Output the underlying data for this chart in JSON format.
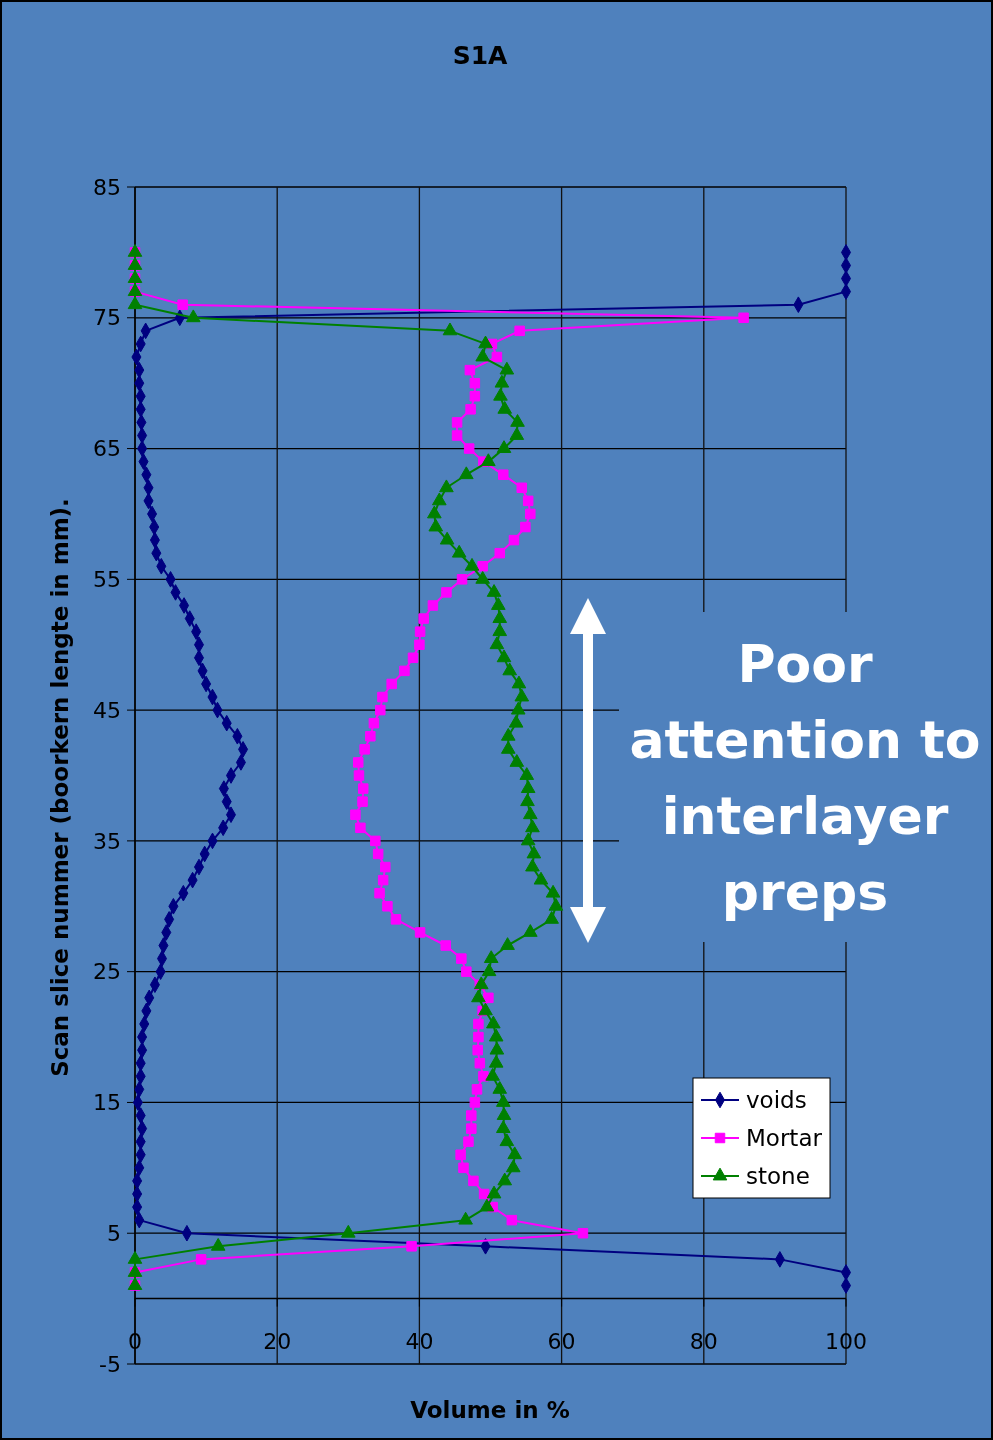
{
  "chart_data": {
    "type": "line",
    "title": "S1A",
    "xlabel": "Volume in %",
    "ylabel": "Scan slice nummer (boorkern lengte in mm).",
    "xlim": [
      0,
      100
    ],
    "xticks": [
      0,
      20,
      40,
      60,
      80,
      100
    ],
    "ylim": [
      -5,
      85
    ],
    "yticks": [
      -5,
      5,
      15,
      25,
      35,
      45,
      55,
      65,
      75,
      85
    ],
    "grid": true,
    "legend": "bottom right",
    "annotations": [
      "Poor attention to interlayer preps"
    ],
    "series": [
      {
        "name": "voids",
        "color": "#000080",
        "marker": "diamond",
        "x": [
          100,
          100,
          90.7,
          49.3,
          7.3,
          0.6,
          0.3,
          0.3,
          0.3,
          0.6,
          0.8,
          0.8,
          1.0,
          0.8,
          0.4,
          0.6,
          0.8,
          0.8,
          1.0,
          1.0,
          1.3,
          1.6,
          2.0,
          2.8,
          3.6,
          3.8,
          4.0,
          4.4,
          4.8,
          5.4,
          6.8,
          8.1,
          9.0,
          9.8,
          10.9,
          12.4,
          13.5,
          12.9,
          12.5,
          13.5,
          14.9,
          15.2,
          14.4,
          12.9,
          11.6,
          10.9,
          10.0,
          9.5,
          9.0,
          9.0,
          8.6,
          7.7,
          6.9,
          5.7,
          5.0,
          3.7,
          3.0,
          2.8,
          2.7,
          2.4,
          1.9,
          1.9,
          1.6,
          1.2,
          1.0,
          1.0,
          0.9,
          0.8,
          0.8,
          0.6,
          0.6,
          0.2,
          0.8,
          1.5,
          6.3,
          93.3,
          100,
          100,
          100,
          100
        ],
        "values": [
          1,
          2,
          3,
          4,
          5,
          6,
          7,
          8,
          9,
          10,
          11,
          12,
          13,
          14,
          15,
          16,
          17,
          18,
          19,
          20,
          21,
          22,
          23,
          24,
          25,
          26,
          27,
          28,
          29,
          30,
          31,
          32,
          33,
          34,
          35,
          36,
          37,
          38,
          39,
          40,
          41,
          42,
          43,
          44,
          45,
          46,
          47,
          48,
          49,
          50,
          51,
          52,
          53,
          54,
          55,
          56,
          57,
          58,
          59,
          60,
          61,
          62,
          63,
          64,
          65,
          66,
          67,
          68,
          69,
          70,
          71,
          72,
          73,
          74,
          75,
          76,
          77,
          78,
          79,
          80
        ]
      },
      {
        "name": "Mortar",
        "color": "#ff00ff",
        "marker": "square",
        "x": [
          0,
          0,
          9.3,
          38.9,
          63,
          53.0,
          50.3,
          49.1,
          47.6,
          46.2,
          45.8,
          46.9,
          47.3,
          47.3,
          47.8,
          48.1,
          49.0,
          48.5,
          48.2,
          48.3,
          48.3,
          48.9,
          49.7,
          48.5,
          46.6,
          45.9,
          43.7,
          40.1,
          36.7,
          35.5,
          34.4,
          34.9,
          35.2,
          34.2,
          33.8,
          31.7,
          31.0,
          32.0,
          32.1,
          31.5,
          31.4,
          32.3,
          33.1,
          33.6,
          34.5,
          34.8,
          36.1,
          37.9,
          39.1,
          40.0,
          40.1,
          40.6,
          41.9,
          43.8,
          46.0,
          48.9,
          51.3,
          53.3,
          54.9,
          55.6,
          55.3,
          54.4,
          51.8,
          49.0,
          47.0,
          45.3,
          45.3,
          47.2,
          47.8,
          47.8,
          47.1,
          50.9,
          50.2,
          54.1,
          85.6,
          6.7,
          0,
          0,
          0,
          0
        ],
        "values": [
          1,
          2,
          3,
          4,
          5,
          6,
          7,
          8,
          9,
          10,
          11,
          12,
          13,
          14,
          15,
          16,
          17,
          18,
          19,
          20,
          21,
          22,
          23,
          24,
          25,
          26,
          27,
          28,
          29,
          30,
          31,
          32,
          33,
          34,
          35,
          36,
          37,
          38,
          39,
          40,
          41,
          42,
          43,
          44,
          45,
          46,
          47,
          48,
          49,
          50,
          51,
          52,
          53,
          54,
          55,
          56,
          57,
          58,
          59,
          60,
          61,
          62,
          63,
          64,
          65,
          66,
          67,
          68,
          69,
          70,
          71,
          72,
          73,
          74,
          75,
          76,
          77,
          78,
          79,
          80
        ]
      },
      {
        "name": "stone",
        "color": "#008000",
        "marker": "triangle",
        "x": [
          0,
          0,
          0,
          11.7,
          30.0,
          46.5,
          49.5,
          50.5,
          52.0,
          53.2,
          53.4,
          52.3,
          51.8,
          51.9,
          51.8,
          51.3,
          50.3,
          50.8,
          50.9,
          50.8,
          50.4,
          49.3,
          48.3,
          48.7,
          49.8,
          50.1,
          52.4,
          55.6,
          58.6,
          59.2,
          58.8,
          57.1,
          55.9,
          56.1,
          55.3,
          55.9,
          55.6,
          55.2,
          55.3,
          55.1,
          53.7,
          52.5,
          52.5,
          53.6,
          53.9,
          54.4,
          54.0,
          52.7,
          51.9,
          50.9,
          51.3,
          51.3,
          51.1,
          50.5,
          48.9,
          47.4,
          45.6,
          43.9,
          42.3,
          42.1,
          42.8,
          43.8,
          46.6,
          49.7,
          51.9,
          53.7,
          53.8,
          52.0,
          51.4,
          51.6,
          52.3,
          48.9,
          49.3,
          44.3,
          8.2,
          0,
          0,
          0,
          0,
          0
        ],
        "values": [
          1,
          2,
          3,
          4,
          5,
          6,
          7,
          8,
          9,
          10,
          11,
          12,
          13,
          14,
          15,
          16,
          17,
          18,
          19,
          20,
          21,
          22,
          23,
          24,
          25,
          26,
          27,
          28,
          29,
          30,
          31,
          32,
          33,
          34,
          35,
          36,
          37,
          38,
          39,
          40,
          41,
          42,
          43,
          44,
          45,
          46,
          47,
          48,
          49,
          50,
          51,
          52,
          53,
          54,
          55,
          56,
          57,
          58,
          59,
          60,
          61,
          62,
          63,
          64,
          65,
          66,
          67,
          68,
          69,
          70,
          71,
          72,
          73,
          74,
          75,
          76,
          77,
          78,
          79,
          80
        ]
      }
    ]
  }
}
